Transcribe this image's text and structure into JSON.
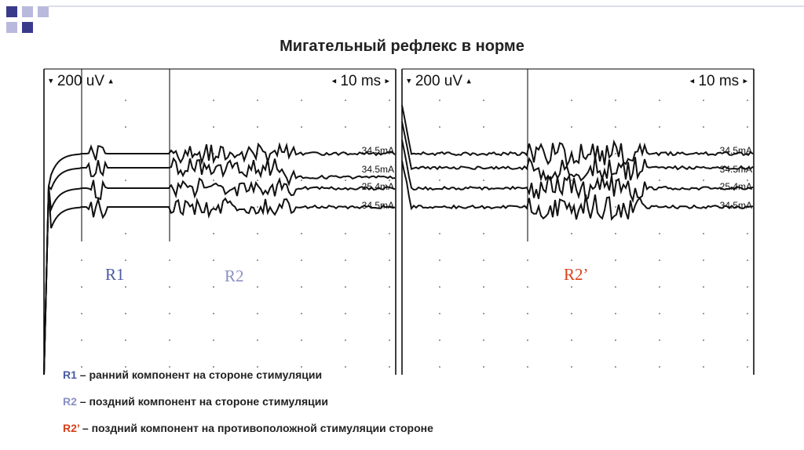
{
  "title": "Мигательный рефлекс в норме",
  "colors": {
    "r1": "#4a5aa0",
    "r2": "#8a90c4",
    "r2prime": "#d8401a",
    "deco_dark": "#3a3a8c",
    "deco_light": "#b9b9de"
  },
  "panels": [
    {
      "sensitivity": "200 uV",
      "sweep": "10 ms",
      "trace_labels": [
        "34.5mA",
        "34.5mA",
        "25.4mA",
        "34.5mA"
      ],
      "components": [
        "R1",
        "R2"
      ]
    },
    {
      "sensitivity": "200 uV",
      "sweep": "10 ms",
      "trace_labels": [
        "34.5mA",
        "34.5mA",
        "25.4mA",
        "34.5mA"
      ],
      "components": [
        "R2’"
      ]
    }
  ],
  "legend": [
    {
      "term": "R1",
      "text": " – ранний компонент на стороне стимуляции"
    },
    {
      "term": "R2",
      "text": " – поздний компонент на стороне стимуляции"
    },
    {
      "term": "R2’",
      "text": " – поздний компонент на противоположной стимуляции стороне"
    }
  ]
}
